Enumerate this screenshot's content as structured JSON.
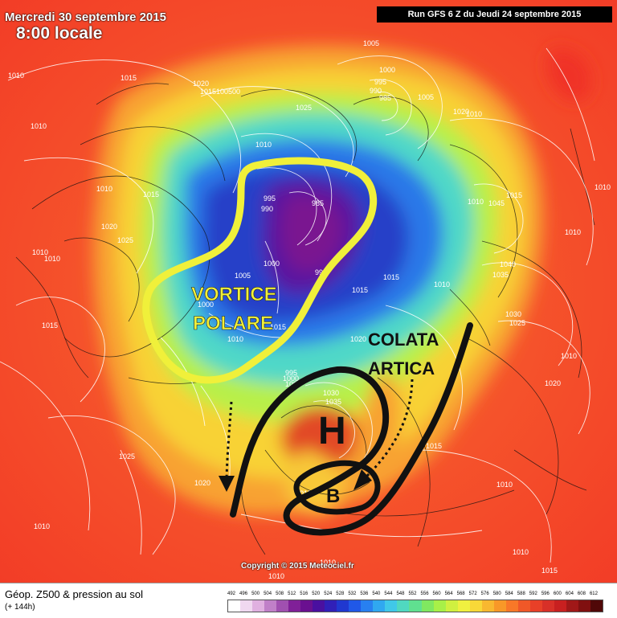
{
  "header": {
    "date": "Mercredi 30 septembre 2015",
    "time": "8:00 locale",
    "run": "Run GFS 6 Z du Jeudi 24 septembre 2015"
  },
  "copyright": "Copyright © 2015 Meteociel.fr",
  "annotations": {
    "vortex_line1": "VORTICE",
    "vortex_line2": "POLARE",
    "colata_line1": "COLATA",
    "colata_line2": "ARTICA",
    "high": "H",
    "low": "B"
  },
  "colors": {
    "vortex_outline": "#f0f03a",
    "annotation_black": "#111111",
    "isobar": "#ffffff"
  },
  "pressure_labels": [
    {
      "v": "1010"
    },
    {
      "v": "1015"
    },
    {
      "v": "1020"
    },
    {
      "v": "1015100500"
    },
    {
      "v": "1025"
    },
    {
      "v": "1005"
    },
    {
      "v": "1000"
    },
    {
      "v": "995"
    },
    {
      "v": "990"
    },
    {
      "v": "985"
    },
    {
      "v": "1005"
    },
    {
      "v": "1020"
    },
    {
      "v": "1010"
    },
    {
      "v": "1010"
    },
    {
      "v": "1015"
    },
    {
      "v": "1020"
    },
    {
      "v": "1025"
    },
    {
      "v": "1010"
    },
    {
      "v": "1010"
    },
    {
      "v": "995"
    },
    {
      "v": "990"
    },
    {
      "v": "985"
    },
    {
      "v": "1005"
    },
    {
      "v": "1000"
    },
    {
      "v": "1000"
    },
    {
      "v": "995"
    },
    {
      "v": "1010"
    },
    {
      "v": "1015"
    },
    {
      "v": "1015"
    },
    {
      "v": "1010"
    },
    {
      "v": "1015"
    },
    {
      "v": "1010"
    },
    {
      "v": "1045"
    },
    {
      "v": "1015"
    },
    {
      "v": "1010"
    },
    {
      "v": "1010"
    },
    {
      "v": "1040"
    },
    {
      "v": "1035"
    },
    {
      "v": "1030"
    },
    {
      "v": "1025"
    },
    {
      "v": "1010"
    },
    {
      "v": "1020"
    },
    {
      "v": "1015"
    },
    {
      "v": "1020"
    },
    {
      "v": "995"
    },
    {
      "v": "1000"
    },
    {
      "v": "1005"
    },
    {
      "v": "1030"
    },
    {
      "v": "1035"
    },
    {
      "v": "1015"
    },
    {
      "v": "1015"
    },
    {
      "v": "1010"
    },
    {
      "v": "1025"
    },
    {
      "v": "1020"
    },
    {
      "v": "1010"
    },
    {
      "v": "1010"
    },
    {
      "v": "1010"
    },
    {
      "v": "1010"
    },
    {
      "v": "1015"
    },
    {
      "v": "1010"
    },
    {
      "v": "1010"
    }
  ],
  "legend": {
    "title": "Géop. Z500 & pression au sol",
    "subtitle": "(+ 144h)",
    "scale": [
      "492",
      "496",
      "500",
      "504",
      "508",
      "512",
      "516",
      "520",
      "524",
      "528",
      "532",
      "536",
      "540",
      "544",
      "548",
      "552",
      "556",
      "560",
      "564",
      "568",
      "572",
      "576",
      "580",
      "584",
      "588",
      "592",
      "596",
      "600",
      "604",
      "608",
      "612"
    ],
    "colors": [
      "#ffffff",
      "#f0d8f0",
      "#e0b0e0",
      "#c080c8",
      "#a050b0",
      "#802098",
      "#6a1090",
      "#4a10a0",
      "#3020b8",
      "#2038d0",
      "#2058e8",
      "#2880f0",
      "#30a8f0",
      "#40c8e8",
      "#50d8c0",
      "#60e090",
      "#80e860",
      "#a8f048",
      "#d0f040",
      "#f0f040",
      "#f8d838",
      "#f8b830",
      "#f89828",
      "#f87828",
      "#f05828",
      "#e84028",
      "#d83028",
      "#c82020",
      "#a01818",
      "#801010",
      "#500808"
    ]
  }
}
